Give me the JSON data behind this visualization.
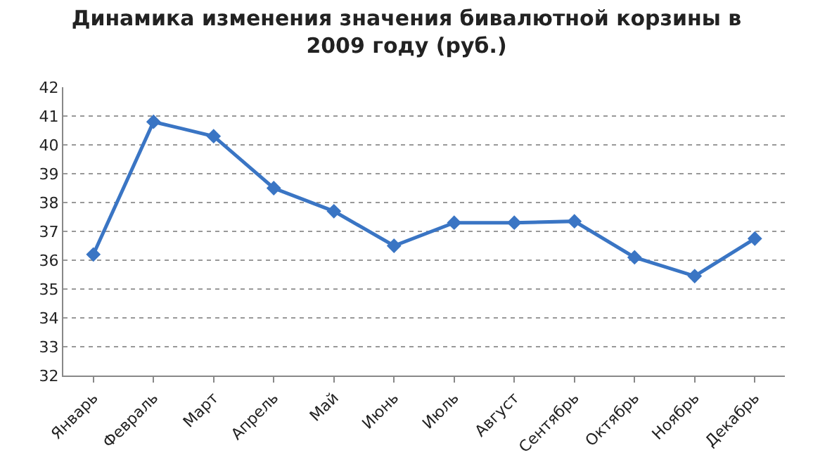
{
  "chart_data": {
    "type": "line",
    "title": "Динамика изменения значения бивалютной корзины в\n2009 году (руб.)",
    "categories": [
      "Январь",
      "Февраль",
      "Март",
      "Апрель",
      "Май",
      "Июнь",
      "Июль",
      "Август",
      "Сентябрь",
      "Октябрь",
      "Ноябрь",
      "Декабрь"
    ],
    "series": [
      {
        "color": "#3a75c4",
        "values": [
          36.2,
          40.8,
          40.3,
          38.5,
          37.7,
          36.5,
          37.3,
          37.3,
          37.35,
          36.1,
          35.45,
          36.75
        ]
      }
    ],
    "ylim": [
      32,
      42
    ],
    "yticks": [
      32,
      33,
      34,
      35,
      36,
      37,
      38,
      39,
      40,
      41,
      42
    ],
    "grid": "y",
    "legend": false,
    "marker": "diamond",
    "line_style": "solid"
  }
}
